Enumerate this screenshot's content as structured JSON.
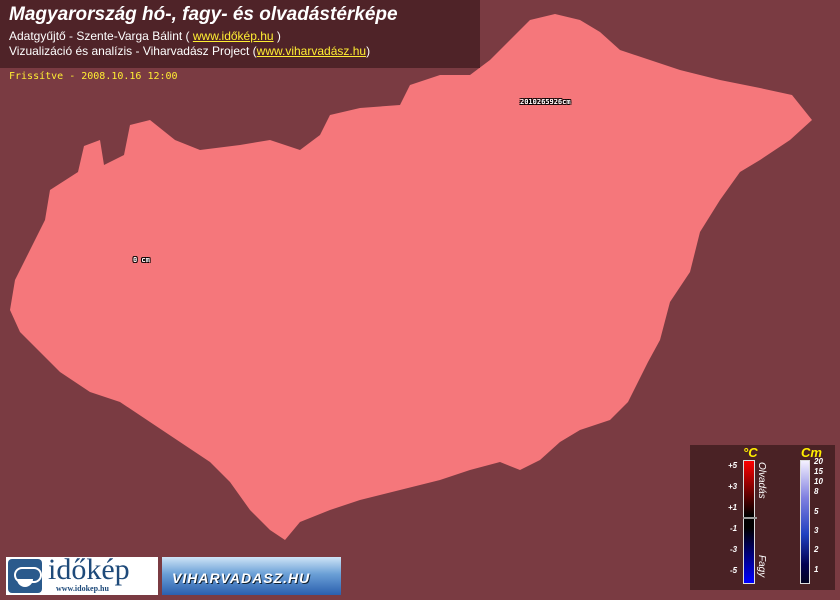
{
  "header": {
    "title": "Magyarország hó-, fagy- és olvadástérképe",
    "line1_text": "Adatgyűjtő - Szente-Varga Bálint ( ",
    "line1_link": "www.időkép.hu",
    "line1_end": " )",
    "line2_text": "Vizualizáció és analízis - Viharvadász Project (",
    "line2_link": "www.viharvadász.hu",
    "line2_end": ")"
  },
  "updated": "Frissítve - 2008.10.16 12:00",
  "map": {
    "fill_color": "#f5777b",
    "background_color": "#7a3b42",
    "labels": [
      {
        "text": "0 cm"
      },
      {
        "text": "2010265926cm"
      }
    ]
  },
  "legend": {
    "temp_unit": "°C",
    "temp_ticks": [
      "+5",
      "+3",
      "+1",
      "-1",
      "-3",
      "-5"
    ],
    "melt_label": "Olvadás",
    "frost_label": "Fagy",
    "snow_unit": "Cm",
    "snow_ticks": [
      "20",
      "15",
      "10",
      "8",
      "5",
      "3",
      "2",
      "1"
    ]
  },
  "logos": {
    "idokep": "időkép",
    "idokep_url": "www.idokep.hu",
    "viharvadasz": "VIHARVADASZ.HU"
  }
}
